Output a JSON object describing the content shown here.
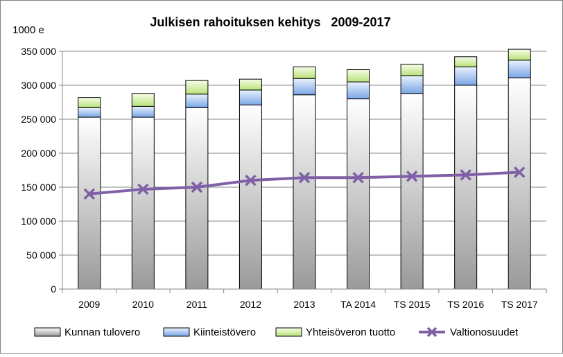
{
  "chart_data": {
    "type": "bar",
    "stacked": true,
    "title": "Julkisen rahoituksen kehitys   2009-2017",
    "unit_label": "1000 e",
    "categories": [
      "2009",
      "2010",
      "2011",
      "2012",
      "2013",
      "TA 2014",
      "TS 2015",
      "TS 2016",
      "TS 2017"
    ],
    "ylim": [
      0,
      350000
    ],
    "yticks": [
      0,
      50000,
      100000,
      150000,
      200000,
      250000,
      300000,
      350000
    ],
    "ytick_labels": [
      "0",
      "50 000",
      "100 000",
      "150 000",
      "200 000",
      "250 000",
      "300 000",
      "350 000"
    ],
    "grid": true,
    "legend_position": "bottom",
    "bar_series": [
      {
        "name": "Kunnan tulovero",
        "values": [
          253000,
          253000,
          267000,
          271000,
          286000,
          280000,
          288000,
          300000,
          311000
        ],
        "color_top": "#ffffff",
        "color_bottom": "#9a9a9a"
      },
      {
        "name": "Kiinteistövero",
        "values": [
          14000,
          16000,
          20000,
          22000,
          24000,
          25000,
          26000,
          27000,
          26000
        ],
        "color_top": "#eaf2fd",
        "color_bottom": "#7aa6e6"
      },
      {
        "name": "Yhteisöveron tuotto",
        "values": [
          15000,
          19000,
          20000,
          16000,
          17000,
          18000,
          17000,
          15000,
          16000
        ],
        "color_top": "#f6fde8",
        "color_bottom": "#b9e27a"
      }
    ],
    "line_series": [
      {
        "name": "Valtionosuudet",
        "values": [
          140000,
          147000,
          150000,
          160000,
          164000,
          164000,
          166000,
          168000,
          172000
        ],
        "color": "#7f5fa5"
      }
    ]
  }
}
